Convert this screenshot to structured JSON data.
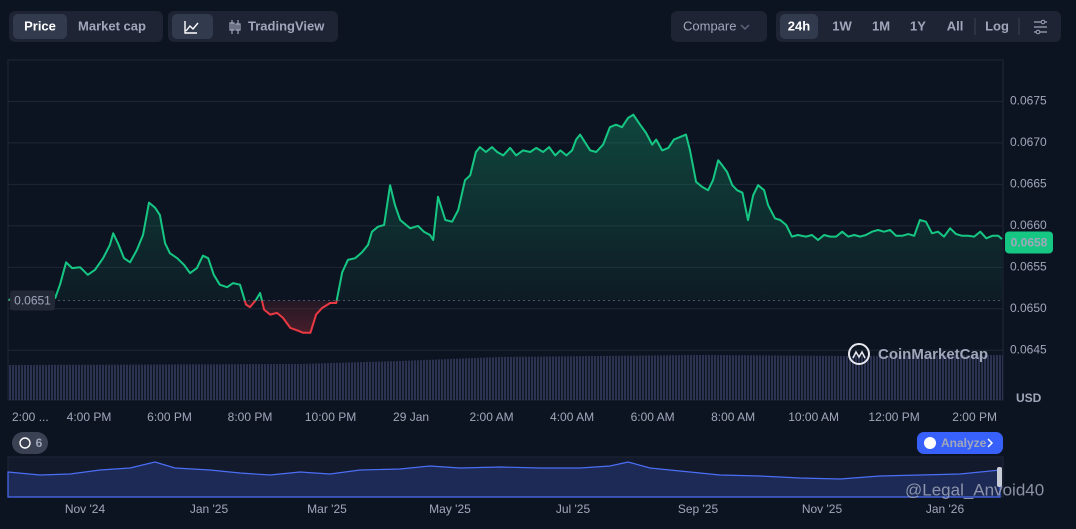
{
  "toolbar": {
    "tabs": [
      "Price",
      "Market cap"
    ],
    "chart_mode": "TradingView",
    "compare": "Compare",
    "ranges": [
      "24h",
      "1W",
      "1M",
      "1Y",
      "All"
    ],
    "scale": "Log"
  },
  "chart_data": {
    "type": "line",
    "x": [
      0,
      1.16,
      1.28,
      1.43,
      1.58,
      1.78,
      1.97,
      2.15,
      2.35,
      2.52,
      2.6,
      2.72,
      2.87,
      3.02,
      3.19,
      3.34,
      3.49,
      3.64,
      3.76,
      3.89,
      4.01,
      4.19,
      4.36,
      4.51,
      4.68,
      4.83,
      4.96,
      5.1,
      5.25,
      5.43,
      5.58,
      5.75,
      5.9,
      6,
      6.15,
      6.25,
      6.35,
      6.5,
      6.67,
      6.82,
      7,
      7.17,
      7.32,
      7.5,
      7.64,
      7.79,
      7.99,
      8.14,
      8.29,
      8.43,
      8.61,
      8.78,
      8.93,
      9.03,
      9.18,
      9.33,
      9.48,
      9.6,
      9.73,
      9.98,
      10.17,
      10.32,
      10.47,
      10.55,
      10.67,
      10.85,
      11.02,
      11.17,
      11.34,
      11.47,
      11.61,
      11.71,
      11.86,
      12.01,
      12.14,
      12.29,
      12.46,
      12.61,
      12.78,
      12.96,
      13.11,
      13.28,
      13.43,
      13.58,
      13.71,
      13.86,
      14,
      14.1,
      14.2,
      14.33,
      14.45,
      14.6,
      14.77,
      14.94,
      15.09,
      15.24,
      15.39,
      15.52,
      15.69,
      15.84,
      15.99,
      16.09,
      16.24,
      16.39,
      16.53,
      16.68,
      16.83,
      16.93,
      17.08,
      17.23,
      17.38,
      17.5,
      17.63,
      17.73,
      17.85,
      17.98,
      18.1,
      18.23,
      18.37,
      18.5,
      18.62,
      18.77,
      18.87,
      19.04,
      19.17,
      19.32,
      19.46,
      19.61,
      19.81,
      19.96,
      20.11,
      20.26,
      20.41,
      20.56,
      20.71,
      20.86,
      21.01,
      21.16,
      21.3,
      21.45,
      21.6,
      21.75,
      21.9,
      22.05,
      22.2,
      22.35,
      22.5,
      22.64,
      22.79,
      22.94,
      23.09,
      23.24,
      23.39,
      23.54,
      23.69,
      23.84,
      23.99,
      24.14,
      24.29,
      24.44,
      24.59,
      24.68
    ],
    "values": [
      0.06511,
      0.06513,
      0.06529,
      0.06556,
      0.06549,
      0.0655,
      0.06541,
      0.06547,
      0.06561,
      0.06577,
      0.06591,
      0.06579,
      0.06561,
      0.06556,
      0.06571,
      0.06589,
      0.06628,
      0.06622,
      0.06613,
      0.06579,
      0.06567,
      0.06561,
      0.06553,
      0.06543,
      0.06549,
      0.06564,
      0.06561,
      0.06541,
      0.06529,
      0.06526,
      0.06531,
      0.06529,
      0.06505,
      0.06502,
      0.06511,
      0.06519,
      0.06499,
      0.06493,
      0.06495,
      0.06489,
      0.06477,
      0.06474,
      0.06471,
      0.06471,
      0.06493,
      0.06501,
      0.06507,
      0.06507,
      0.06544,
      0.06559,
      0.06561,
      0.06568,
      0.06577,
      0.06593,
      0.06599,
      0.06601,
      0.06649,
      0.06625,
      0.06607,
      0.06597,
      0.066,
      0.06593,
      0.06589,
      0.06583,
      0.06635,
      0.06607,
      0.06605,
      0.06619,
      0.06655,
      0.06661,
      0.06689,
      0.06695,
      0.06689,
      0.06695,
      0.06689,
      0.06685,
      0.06694,
      0.06685,
      0.06691,
      0.06689,
      0.06694,
      0.06689,
      0.06695,
      0.06685,
      0.06691,
      0.06685,
      0.06691,
      0.06704,
      0.0671,
      0.067,
      0.06691,
      0.06689,
      0.06698,
      0.06719,
      0.06722,
      0.06719,
      0.0673,
      0.06734,
      0.06722,
      0.06712,
      0.06698,
      0.06704,
      0.06691,
      0.06694,
      0.06704,
      0.06707,
      0.0671,
      0.06691,
      0.06653,
      0.06647,
      0.06643,
      0.06655,
      0.06679,
      0.06673,
      0.06665,
      0.06649,
      0.06643,
      0.0664,
      0.06607,
      0.06637,
      0.06649,
      0.06643,
      0.06625,
      0.06609,
      0.06607,
      0.06601,
      0.06587,
      0.06589,
      0.06587,
      0.06589,
      0.06583,
      0.06589,
      0.06587,
      0.06587,
      0.06593,
      0.06587,
      0.06589,
      0.06587,
      0.06589,
      0.06593,
      0.06595,
      0.06593,
      0.06595,
      0.06588,
      0.06588,
      0.0659,
      0.06588,
      0.06607,
      0.06605,
      0.06591,
      0.06593,
      0.06587,
      0.06597,
      0.0659,
      0.06588,
      0.06588,
      0.06587,
      0.06593,
      0.06585,
      0.06588,
      0.06588,
      0.06584
    ],
    "xlim": [
      0,
      24.68
    ],
    "ylim": [
      0.0639,
      0.068
    ],
    "xticks": [
      {
        "value": 0,
        "label": "2:00 ..."
      },
      {
        "value": 2,
        "label": "4:00 PM"
      },
      {
        "value": 4,
        "label": "6:00 PM"
      },
      {
        "value": 6,
        "label": "8:00 PM"
      },
      {
        "value": 8,
        "label": "10:00 PM"
      },
      {
        "value": 10,
        "label": "29 Jan"
      },
      {
        "value": 12,
        "label": "2:00 AM"
      },
      {
        "value": 14,
        "label": "4:00 AM"
      },
      {
        "value": 16,
        "label": "6:00 AM"
      },
      {
        "value": 18,
        "label": "8:00 AM"
      },
      {
        "value": 20,
        "label": "10:00 AM"
      },
      {
        "value": 22,
        "label": "12:00 PM"
      },
      {
        "value": 24,
        "label": "2:00 PM"
      }
    ],
    "yticks": [
      0.0645,
      {
        "value": 0.065,
        "label": "0.0650"
      },
      0.0655,
      {
        "value": 0.066,
        "label": "0.0660"
      },
      0.0665,
      {
        "value": 0.067,
        "label": "0.0670"
      },
      0.0675
    ],
    "y_unit": "USD",
    "open_price": 0.0651,
    "current_price": 0.0658,
    "up_color": "#16c784",
    "down_color": "#ea3943",
    "grid": true
  },
  "watermark": "CoinMarketCap",
  "events_count": 6,
  "analyze": "Analyze",
  "navigator": {
    "x_labels": [
      "Nov '24",
      "Jan '25",
      "Mar '25",
      "May '25",
      "Jul '25",
      "Sep '25",
      "Nov '25",
      "Jan '26"
    ]
  },
  "user_watermark": "@Legal_Anvoid40"
}
